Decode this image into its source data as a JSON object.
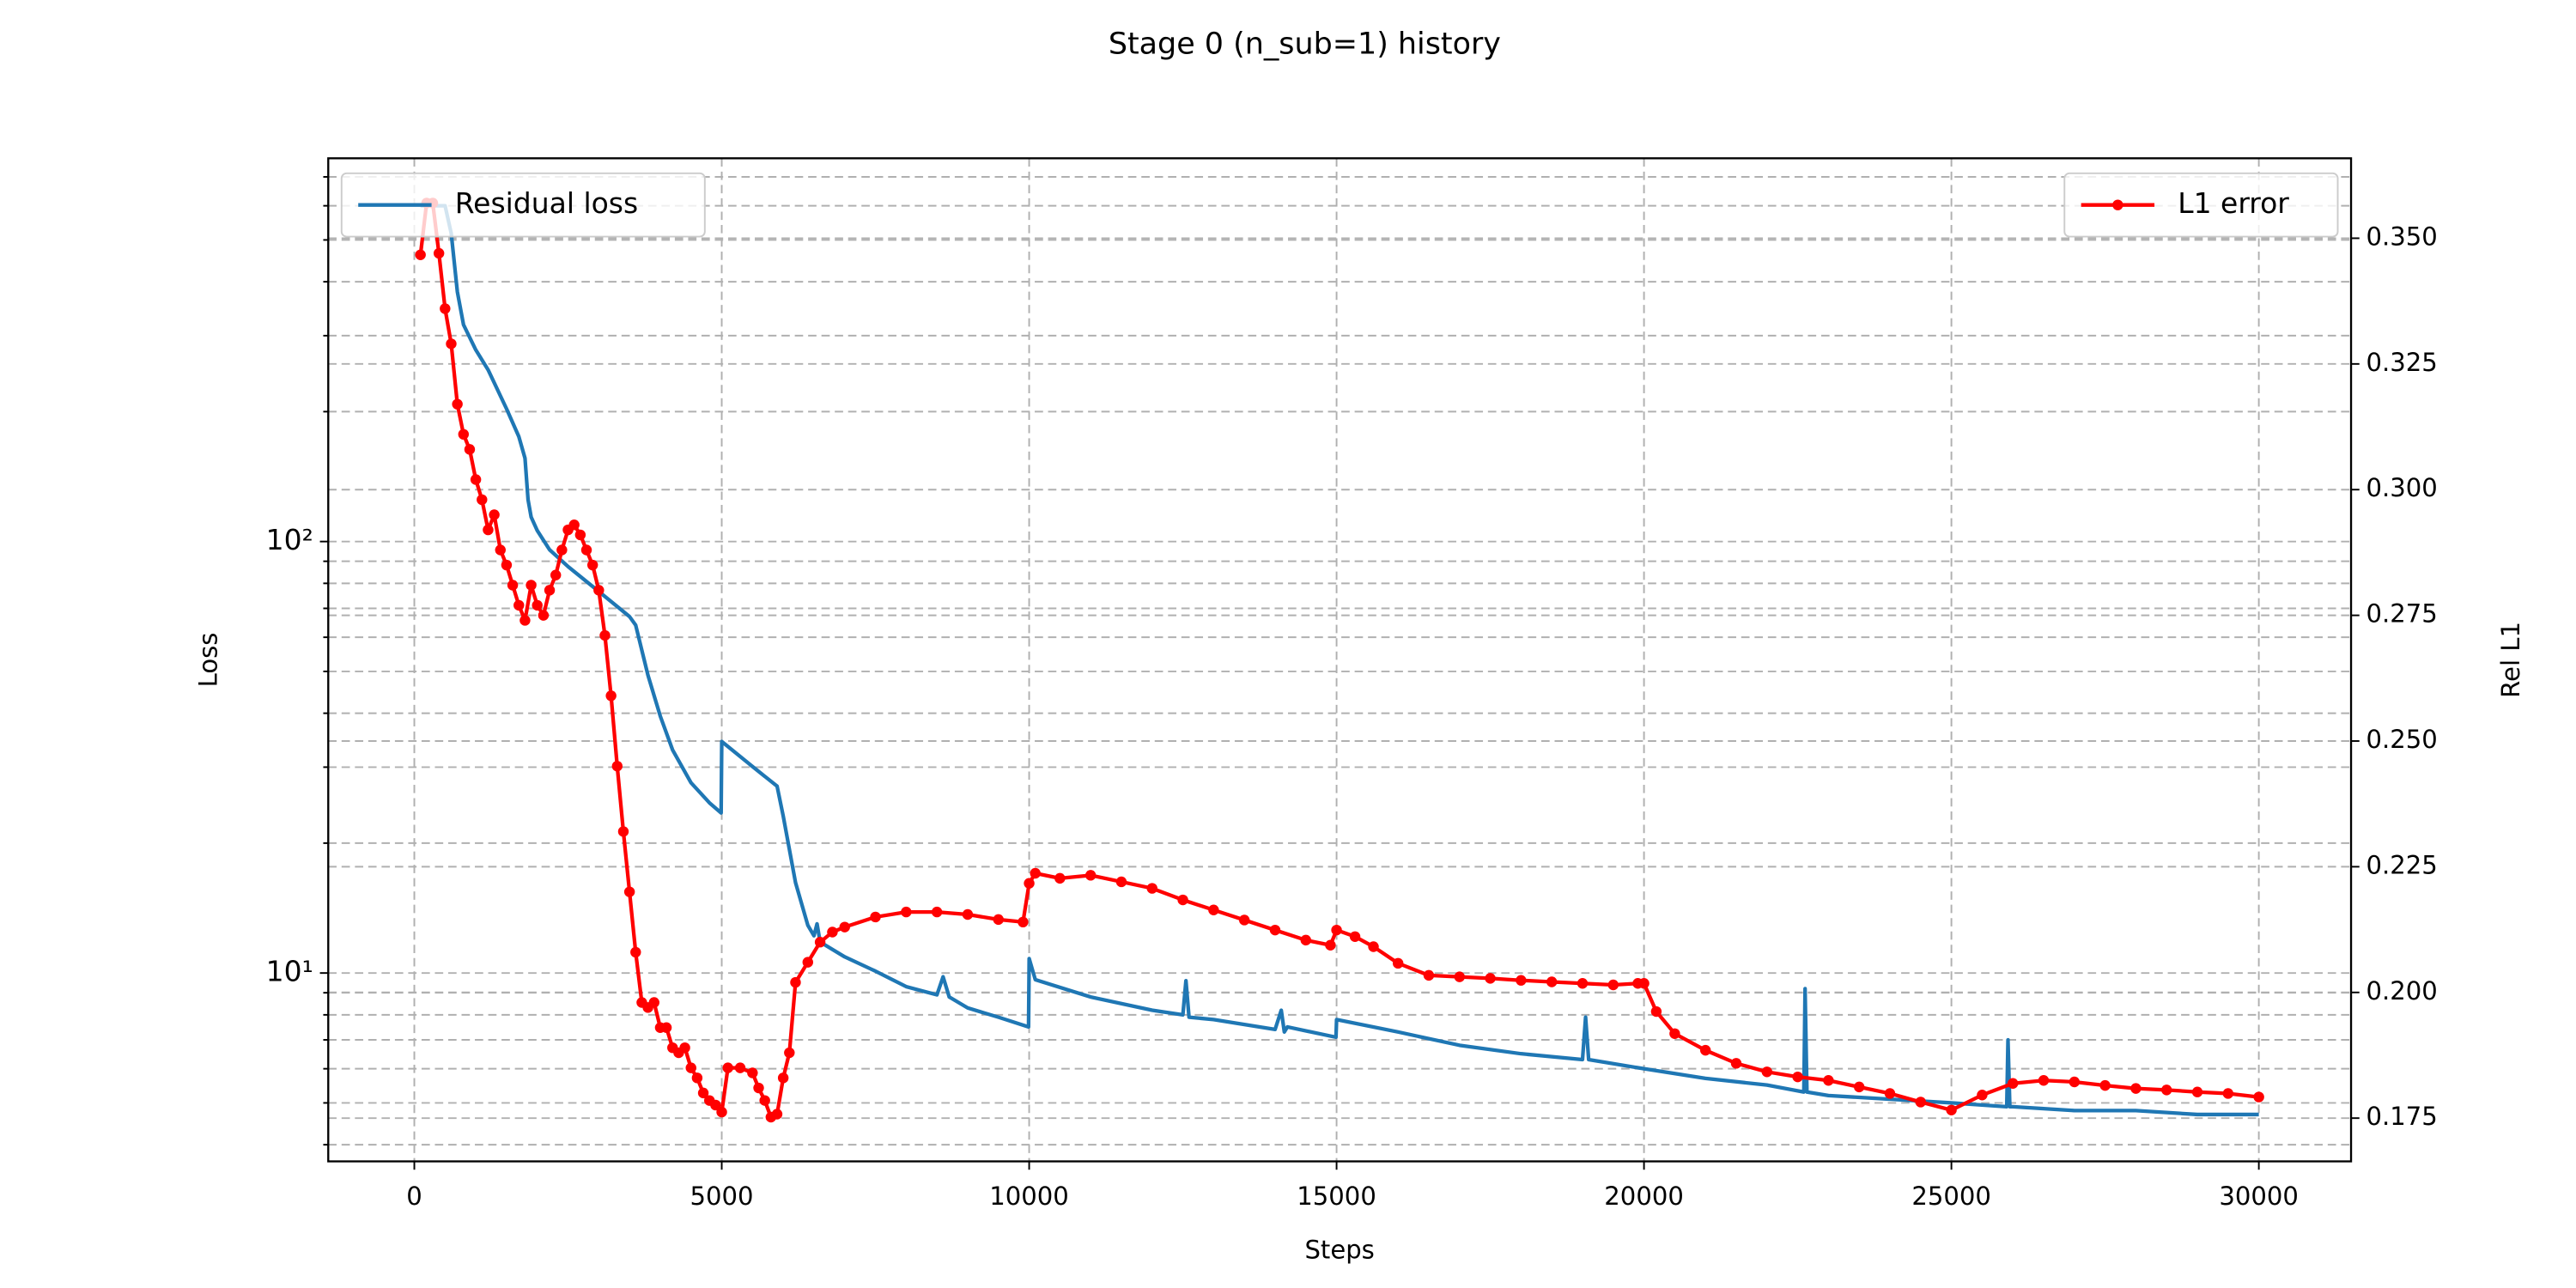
{
  "chart_data": {
    "type": "line",
    "title": "Stage 0 (n_sub=1) history",
    "x_label": "Steps",
    "y_label": "Loss",
    "y2_label": "Rel L1",
    "xlim": [
      -1400,
      31500
    ],
    "xticks": [
      0,
      5000,
      10000,
      15000,
      20000,
      25000,
      30000
    ],
    "ylim": [
      3.66,
      773
    ],
    "yscale": "log",
    "yticks": [
      {
        "value": 10,
        "label": "10¹"
      },
      {
        "value": 100,
        "label": "10²"
      }
    ],
    "yminorticks": [
      4,
      5,
      6,
      7,
      8,
      9,
      20,
      30,
      40,
      50,
      60,
      70,
      80,
      90,
      200,
      300,
      400,
      500,
      600,
      700
    ],
    "y2lim": [
      0.1664,
      0.3659
    ],
    "y2ticks": [
      0.175,
      {
        "value": 0.2,
        "label": "0.200"
      },
      0.225,
      {
        "value": 0.25,
        "label": "0.250"
      },
      0.275,
      {
        "value": 0.3,
        "label": "0.300"
      },
      0.325,
      {
        "value": 0.35,
        "label": "0.350"
      }
    ],
    "grid": true,
    "series": [
      {
        "name": "Residual loss",
        "color": "#1f77b4",
        "axis": "y",
        "legend": "upper left",
        "x": [
          100,
          500,
          600,
          700,
          800,
          1000,
          1200,
          1500,
          1700,
          1800,
          1850,
          1900,
          2000,
          2200,
          2500,
          3000,
          3500,
          3600,
          3800,
          4000,
          4200,
          4500,
          4800,
          4990,
          5000,
          5500,
          5900,
          6000,
          6200,
          6400,
          6500,
          6550,
          6600,
          7000,
          7500,
          8000,
          8500,
          8600,
          8700,
          9000,
          9500,
          9990,
          10000,
          10100,
          11000,
          12000,
          12500,
          12550,
          12600,
          13000,
          14000,
          14100,
          14150,
          14200,
          14990,
          15000,
          16000,
          17000,
          18000,
          19000,
          19050,
          19100,
          20000,
          21000,
          22000,
          22600,
          22620,
          22650,
          23000,
          24000,
          25000,
          25900,
          25920,
          25950,
          26000,
          27000,
          28000,
          29000,
          30000
        ],
        "values": [
          600,
          600,
          518,
          379,
          318,
          278,
          250,
          203,
          175,
          156,
          125,
          114,
          106,
          95.7,
          87.5,
          76.6,
          67,
          64,
          49,
          39.4,
          32.9,
          27.6,
          24.8,
          23.5,
          34.4,
          30.1,
          27.1,
          23.1,
          16.2,
          12.9,
          12.2,
          13,
          11.8,
          10.9,
          10.1,
          9.3,
          8.9,
          9.8,
          8.8,
          8.3,
          7.9,
          7.5,
          10.8,
          9.65,
          8.8,
          8.2,
          8.0,
          9.6,
          7.9,
          7.8,
          7.4,
          8.2,
          7.3,
          7.5,
          7.1,
          7.8,
          7.3,
          6.8,
          6.5,
          6.3,
          7.9,
          6.3,
          6.0,
          5.7,
          5.5,
          5.3,
          9.2,
          5.3,
          5.2,
          5.1,
          5.0,
          4.9,
          7.0,
          4.9,
          4.9,
          4.8,
          4.8,
          4.7,
          4.7
        ]
      },
      {
        "name": "L1 error",
        "color": "#ff0000",
        "axis": "y2",
        "marker": "o",
        "legend": "upper right",
        "x": [
          100,
          200,
          300,
          400,
          500,
          600,
          700,
          800,
          900,
          1000,
          1100,
          1200,
          1300,
          1400,
          1500,
          1600,
          1700,
          1800,
          1900,
          2000,
          2100,
          2200,
          2300,
          2400,
          2500,
          2600,
          2700,
          2800,
          2900,
          3000,
          3100,
          3200,
          3300,
          3400,
          3500,
          3600,
          3700,
          3800,
          3900,
          4000,
          4100,
          4200,
          4300,
          4400,
          4500,
          4600,
          4700,
          4800,
          4900,
          5000,
          5100,
          5300,
          5500,
          5600,
          5700,
          5800,
          5900,
          6000,
          6100,
          6200,
          6400,
          6600,
          6800,
          7000,
          7500,
          8000,
          8500,
          9000,
          9500,
          9900,
          10000,
          10100,
          10500,
          11000,
          11500,
          12000,
          12500,
          13000,
          13500,
          14000,
          14500,
          14900,
          15000,
          15300,
          15600,
          16000,
          16500,
          17000,
          17500,
          18000,
          18500,
          19000,
          19500,
          19900,
          20000,
          20200,
          20500,
          21000,
          21500,
          22000,
          22500,
          23000,
          23500,
          24000,
          24500,
          25000,
          25500,
          26000,
          26500,
          27000,
          27500,
          28000,
          28500,
          29000,
          29500,
          30000
        ],
        "values": [
          0.3467,
          0.357,
          0.357,
          0.347,
          0.336,
          0.329,
          0.317,
          0.311,
          0.308,
          0.302,
          0.298,
          0.292,
          0.295,
          0.288,
          0.285,
          0.281,
          0.277,
          0.274,
          0.281,
          0.277,
          0.275,
          0.28,
          0.283,
          0.288,
          0.292,
          0.293,
          0.291,
          0.288,
          0.285,
          0.28,
          0.271,
          0.259,
          0.245,
          0.232,
          0.22,
          0.208,
          0.198,
          0.197,
          0.198,
          0.193,
          0.193,
          0.189,
          0.188,
          0.189,
          0.185,
          0.183,
          0.18,
          0.1785,
          0.1776,
          0.1762,
          0.185,
          0.185,
          0.184,
          0.181,
          0.1785,
          0.1752,
          0.1758,
          0.183,
          0.188,
          0.202,
          0.206,
          0.21,
          0.212,
          0.213,
          0.215,
          0.216,
          0.216,
          0.2155,
          0.2145,
          0.214,
          0.2217,
          0.2237,
          0.2227,
          0.2233,
          0.222,
          0.2207,
          0.2184,
          0.2164,
          0.2144,
          0.2124,
          0.2104,
          0.2094,
          0.2124,
          0.2111,
          0.2091,
          0.2058,
          0.2034,
          0.2031,
          0.2028,
          0.2024,
          0.2021,
          0.2018,
          0.2015,
          0.2018,
          0.2018,
          0.1962,
          0.1918,
          0.1885,
          0.1859,
          0.1842,
          0.1832,
          0.1825,
          0.1812,
          0.1799,
          0.1782,
          0.1766,
          0.1796,
          0.1819,
          0.1825,
          0.1822,
          0.1815,
          0.1809,
          0.1806,
          0.1802,
          0.1799,
          0.1792
        ]
      }
    ]
  }
}
